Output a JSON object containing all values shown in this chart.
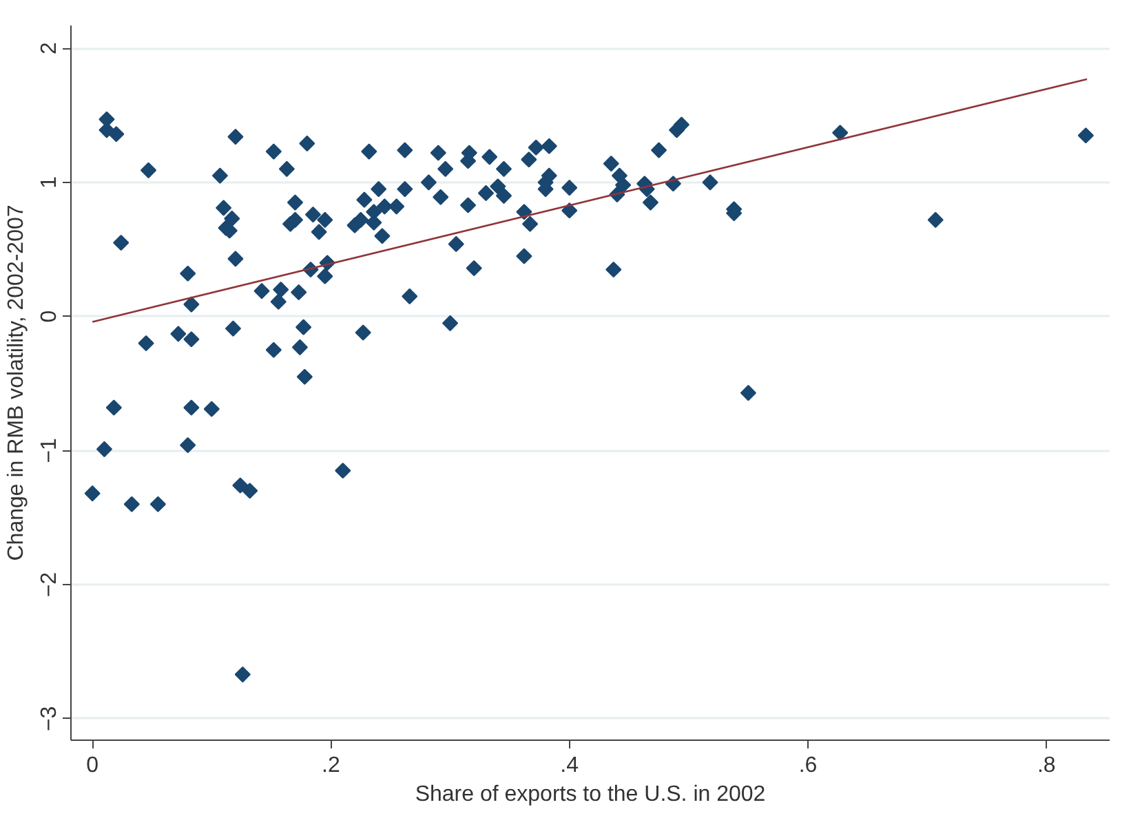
{
  "chart_data": {
    "type": "scatter",
    "xlabel": "Share of exports to the U.S. in 2002",
    "ylabel": "Change in RMB volatility, 2002-2007",
    "xlim": [
      -0.018,
      0.853
    ],
    "ylim": [
      -3.16,
      2.17
    ],
    "xticks": [
      {
        "value": 0,
        "label": "0"
      },
      {
        "value": 0.2,
        "label": ".2"
      },
      {
        "value": 0.4,
        "label": ".4"
      },
      {
        "value": 0.6,
        "label": ".6"
      },
      {
        "value": 0.8,
        "label": ".8"
      }
    ],
    "yticks": [
      -3,
      -2,
      -1,
      0,
      1,
      2
    ],
    "grid": "y",
    "series": [
      {
        "marker": "diamond",
        "color": "#1a476f",
        "x": [
          0.0,
          0.01,
          0.012,
          0.012,
          0.018,
          0.02,
          0.024,
          0.033,
          0.045,
          0.047,
          0.055,
          0.072,
          0.08,
          0.08,
          0.083,
          0.083,
          0.083,
          0.1,
          0.107,
          0.11,
          0.112,
          0.115,
          0.117,
          0.118,
          0.12,
          0.12,
          0.124,
          0.126,
          0.132,
          0.142,
          0.152,
          0.152,
          0.156,
          0.158,
          0.163,
          0.166,
          0.17,
          0.17,
          0.173,
          0.174,
          0.177,
          0.178,
          0.18,
          0.183,
          0.185,
          0.19,
          0.195,
          0.195,
          0.197,
          0.21,
          0.22,
          0.225,
          0.227,
          0.228,
          0.232,
          0.236,
          0.236,
          0.24,
          0.243,
          0.245,
          0.255,
          0.262,
          0.262,
          0.266,
          0.282,
          0.29,
          0.292,
          0.296,
          0.3,
          0.305,
          0.315,
          0.316,
          0.315,
          0.32,
          0.33,
          0.333,
          0.34,
          0.345,
          0.345,
          0.362,
          0.362,
          0.366,
          0.367,
          0.372,
          0.38,
          0.38,
          0.383,
          0.383,
          0.4,
          0.4,
          0.435,
          0.437,
          0.44,
          0.442,
          0.445,
          0.463,
          0.465,
          0.468,
          0.475,
          0.487,
          0.49,
          0.494,
          0.518,
          0.538,
          0.538,
          0.55,
          0.627,
          0.707,
          0.833
        ],
        "values": [
          -1.32,
          -0.99,
          1.47,
          1.39,
          -0.68,
          1.36,
          0.55,
          -1.4,
          -0.2,
          1.09,
          -1.4,
          -0.13,
          0.32,
          -0.96,
          0.09,
          -0.17,
          -0.68,
          -0.69,
          1.05,
          0.81,
          0.66,
          0.64,
          0.73,
          -0.09,
          1.34,
          0.43,
          -1.26,
          -2.67,
          -1.3,
          0.19,
          1.23,
          -0.25,
          0.11,
          0.2,
          1.1,
          0.69,
          0.85,
          0.72,
          0.18,
          -0.23,
          -0.08,
          -0.45,
          1.29,
          0.35,
          0.76,
          0.63,
          0.3,
          0.72,
          0.4,
          -1.15,
          0.68,
          0.72,
          -0.12,
          0.87,
          1.23,
          0.78,
          0.7,
          0.95,
          0.6,
          0.82,
          0.82,
          1.24,
          0.95,
          0.15,
          1.0,
          1.22,
          0.89,
          1.1,
          -0.05,
          0.54,
          1.16,
          1.22,
          0.83,
          0.36,
          0.92,
          1.19,
          0.97,
          1.1,
          0.9,
          0.45,
          0.78,
          1.17,
          0.69,
          1.26,
          0.95,
          1.0,
          1.27,
          1.05,
          0.96,
          0.79,
          1.14,
          0.35,
          0.91,
          1.05,
          0.98,
          0.99,
          0.95,
          0.85,
          1.24,
          0.99,
          1.39,
          1.43,
          1.0,
          0.77,
          0.8,
          -0.57,
          1.37,
          0.72,
          1.35
        ]
      },
      {
        "type": "line",
        "marker": "none",
        "color": "#90353b",
        "x": [
          0.0,
          0.834
        ],
        "values": [
          -0.04,
          1.77
        ]
      }
    ]
  }
}
